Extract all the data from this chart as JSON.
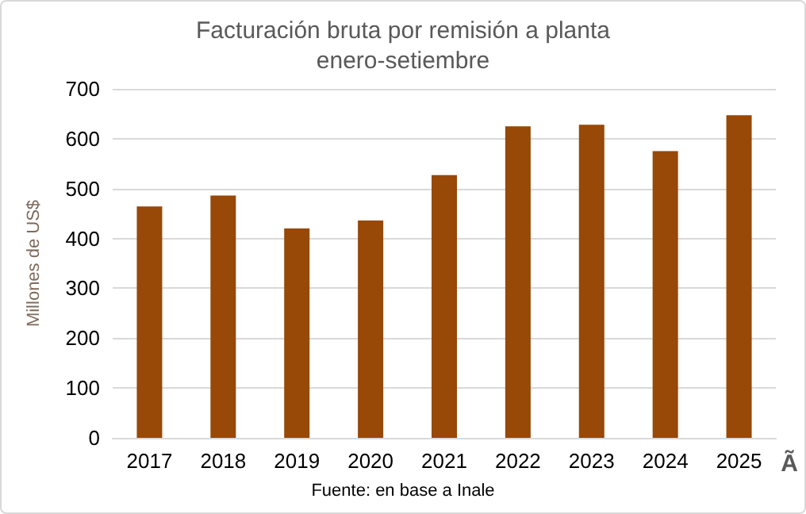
{
  "chart_data": {
    "type": "bar",
    "title": "Facturación bruta por remisión a planta",
    "subtitle": "enero-setiembre",
    "ylabel": "Millones de US$",
    "categories": [
      "2017",
      "2018",
      "2019",
      "2020",
      "2021",
      "2022",
      "2023",
      "2024",
      "2025"
    ],
    "values": [
      464,
      486,
      420,
      436,
      527,
      625,
      628,
      575,
      647
    ],
    "color": "#984807",
    "ylim": [
      0,
      700
    ],
    "yticks": [
      0,
      100,
      200,
      300,
      400,
      500,
      600,
      700
    ],
    "grid": "y",
    "annotations": [
      "Fuente: en base a Inale",
      "Ã"
    ]
  }
}
